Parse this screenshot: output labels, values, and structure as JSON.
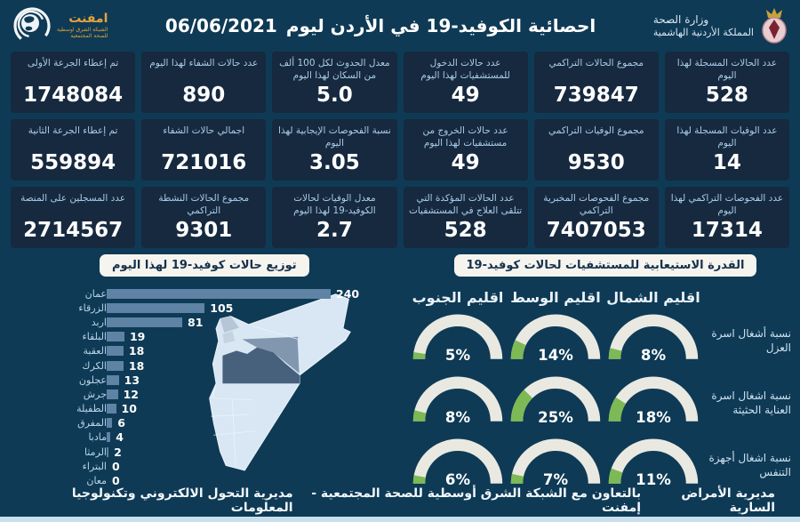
{
  "header": {
    "title": "احصائية الكوفيد-19 في الأردن ليوم",
    "date": "06/06/2021",
    "ministry_line1": "وزارة الصحة",
    "ministry_line2": "المملكة الأردنية الهاشمية",
    "emphnet_name": "امفنت",
    "emphnet_sub1": "الشبكة الشرق اوسطية",
    "emphnet_sub2": "للصحة المجتمعية"
  },
  "stats": [
    {
      "label": "عدد الحالات المسجلة لهذا اليوم",
      "value": "528"
    },
    {
      "label": "مجموع الحالات التراكمي",
      "value": "739847"
    },
    {
      "label": "عدد حالات الدخول للمستشفيات لهذا اليوم",
      "value": "49"
    },
    {
      "label": "معدل الحدوث لكل 100 ألف من السكان لهذا اليوم",
      "value": "5.0"
    },
    {
      "label": "عدد حالات الشفاء لهذا اليوم",
      "value": "890"
    },
    {
      "label": "تم إعطاء الجرعة الأولى",
      "value": "1748084"
    },
    {
      "label": "عدد الوفيات المسجلة لهذا اليوم",
      "value": "14"
    },
    {
      "label": "مجموع الوفيات التراكمي",
      "value": "9530"
    },
    {
      "label": "عدد حالات الخروج من مستشفيات لهذا اليوم",
      "value": "49"
    },
    {
      "label": "نسبة الفحوصات الإيجابية لهذا اليوم",
      "value": "3.05"
    },
    {
      "label": "اجمالي حالات الشفاء",
      "value": "721016"
    },
    {
      "label": "تم إعطاء الجرعة الثانية",
      "value": "559894"
    },
    {
      "label": "عدد الفحوصات التراكمي لهذا اليوم",
      "value": "17314"
    },
    {
      "label": "مجموع الفحوصات المخبرية التراكمي",
      "value": "7407053"
    },
    {
      "label": "عدد الحالات المؤكدة التي تتلقى العلاج في المستشفيات",
      "value": "528"
    },
    {
      "label": "معدل الوفيات لحالات الكوفيد-19 لهذا اليوم",
      "value": "2.7"
    },
    {
      "label": "مجموع الحالات النشطة التراكمي",
      "value": "9301"
    },
    {
      "label": "عدد المسجلين على المنصة",
      "value": "2714567"
    }
  ],
  "chart_data": [
    {
      "type": "bar",
      "title": "توزيع حالات كوفيد-19 لهذا اليوم",
      "orientation": "horizontal",
      "categories": [
        "عمان",
        "الزرقاء",
        "اربد",
        "البلقاء",
        "العقبة",
        "الكرك",
        "عجلون",
        "جرش",
        "الطفيلة",
        "المفرق",
        "مادبا",
        "الرمثا",
        "البتراء",
        "معان"
      ],
      "values": [
        240,
        105,
        81,
        19,
        18,
        18,
        13,
        12,
        10,
        6,
        4,
        2,
        0,
        0
      ],
      "xlim": [
        0,
        240
      ],
      "value_labels": true
    },
    {
      "type": "gauge",
      "title": "القدرة الاستيعابية للمستشفيات لحالات كوفيد-19",
      "unit": "%",
      "columns": [
        "اقليم الشمال",
        "اقليم الوسط",
        "اقليم الجنوب"
      ],
      "rows": [
        {
          "label": "نسبة أشغال اسرة العزل",
          "values": [
            8,
            14,
            5
          ]
        },
        {
          "label": "نسبة اشغال اسرة العناية الحثيثة",
          "values": [
            18,
            25,
            8
          ]
        },
        {
          "label": "نسبة اشغال أجهزة التنفس",
          "values": [
            11,
            7,
            6
          ]
        }
      ]
    }
  ],
  "footer": {
    "right": "مديرية الأمراض السارية",
    "middle": "بالتعاون مع الشبكة الشرق أوسطية للصحة المجتمعية - إمفنت",
    "left": "مديرية التحول الالكتروني وتكنولوجيا المعلومات"
  },
  "colors": {
    "background": "#0e3a55",
    "card": "#16293f",
    "label_text": "#aacde8",
    "bar": "#5e83a4",
    "gauge_green": "#7db954",
    "gauge_track": "#e9e9e2",
    "pill_bg": "#f6f4ef",
    "logo_orange": "#e8a33d"
  }
}
